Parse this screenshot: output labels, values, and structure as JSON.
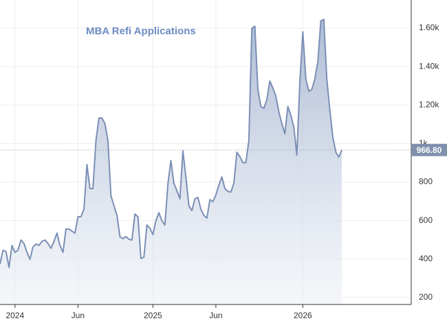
{
  "chart_data": {
    "type": "area",
    "title": "MBA Refi Applications",
    "categories": [
      null,
      null,
      null,
      null,
      null,
      "2024",
      null,
      null,
      null,
      null,
      null,
      null,
      null,
      null,
      null,
      null,
      null,
      null,
      null,
      null,
      null,
      null,
      null,
      null,
      null,
      null,
      "Jun",
      null,
      null,
      null,
      null,
      null,
      null,
      null,
      null,
      null,
      null,
      null,
      null,
      null,
      null,
      null,
      null,
      null,
      null,
      null,
      null,
      null,
      null,
      null,
      null,
      "2025",
      null,
      null,
      null,
      null,
      null,
      null,
      null,
      null,
      null,
      null,
      null,
      null,
      null,
      null,
      null,
      null,
      null,
      null,
      null,
      null,
      "Jun",
      null,
      null,
      null,
      null,
      null,
      null,
      null,
      null,
      null,
      null,
      null,
      null,
      null,
      null,
      null,
      null,
      null,
      null,
      null,
      null,
      null,
      null,
      null,
      null,
      null,
      null,
      null,
      null,
      "2026",
      null,
      null,
      null,
      null,
      null,
      null,
      null,
      null,
      null,
      null,
      null,
      null,
      null
    ],
    "values": [
      374,
      446,
      439,
      357,
      471,
      435,
      446,
      499,
      481,
      435,
      399,
      463,
      478,
      471,
      492,
      499,
      481,
      456,
      492,
      535,
      471,
      435,
      556,
      556,
      545,
      535,
      620,
      620,
      659,
      891,
      766,
      766,
      1015,
      1133,
      1133,
      1104,
      1015,
      730,
      677,
      627,
      517,
      506,
      517,
      503,
      499,
      634,
      620,
      403,
      410,
      577,
      560,
      527,
      599,
      641,
      599,
      577,
      791,
      912,
      794,
      755,
      713,
      962,
      827,
      677,
      652,
      713,
      720,
      659,
      627,
      613,
      709,
      698,
      734,
      784,
      827,
      766,
      752,
      748,
      794,
      955,
      933,
      901,
      901,
      1015,
      1599,
      1610,
      1282,
      1193,
      1183,
      1229,
      1325,
      1289,
      1247,
      1165,
      1104,
      1051,
      1193,
      1147,
      1086,
      940,
      1318,
      1581,
      1336,
      1272,
      1282,
      1336,
      1425,
      1638,
      1645,
      1336,
      1175,
      1033,
      955,
      930,
      966.8
    ],
    "last_value_label": "966.80",
    "color": "#7b8fb5",
    "ylim": [
      164,
      1746
    ],
    "yticks": [
      200,
      400,
      600,
      800,
      {
        "value": 1000,
        "label": "1k"
      },
      {
        "value": 1200,
        "label": "1.20k"
      },
      {
        "value": 1400,
        "label": "1.40k"
      },
      {
        "value": 1600,
        "label": "1.60k"
      }
    ],
    "grid": true
  }
}
